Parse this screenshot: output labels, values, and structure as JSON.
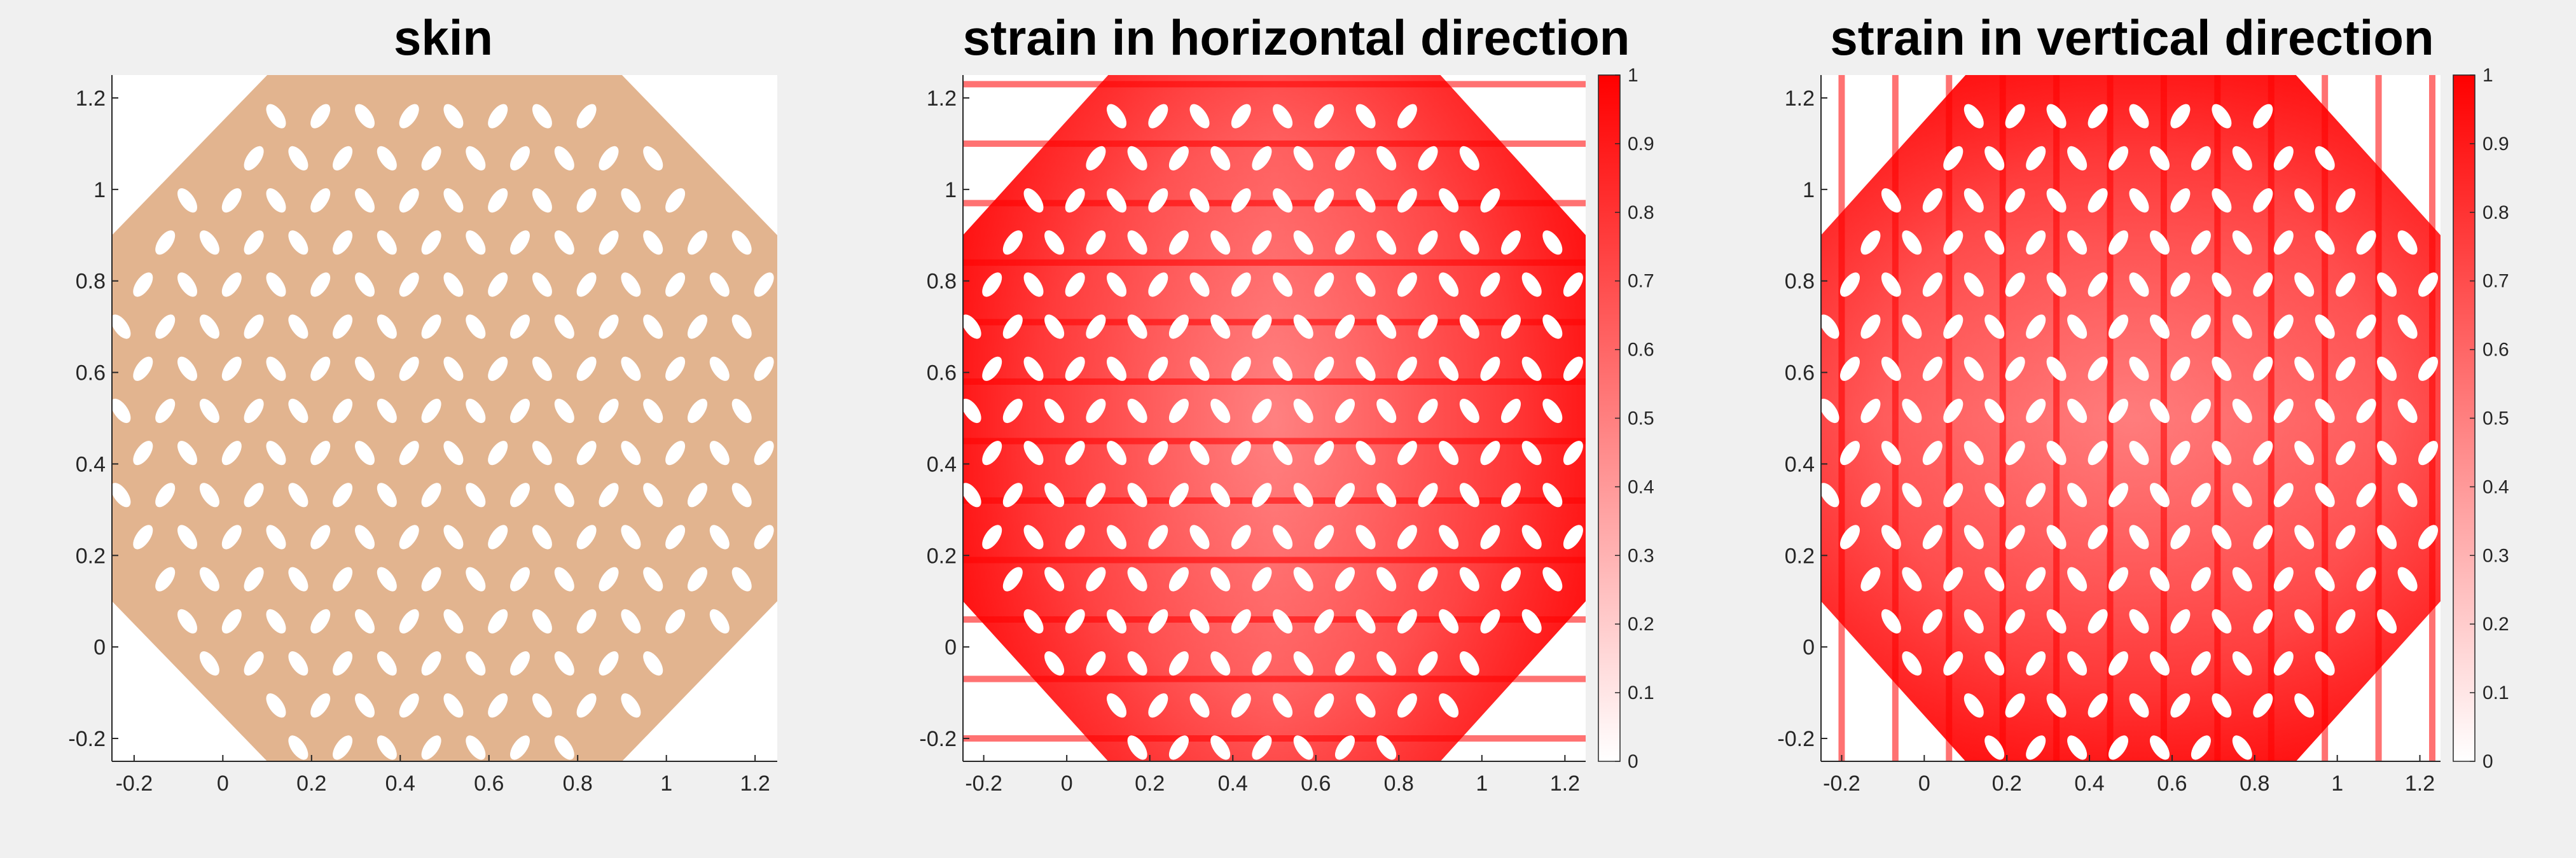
{
  "colors": {
    "background": "#f0f0f0",
    "axes_background": "#ffffff",
    "axis_line": "#262626",
    "skin": "#e2b48f",
    "hole": "#ffffff",
    "strain_high": "#ff0000",
    "strain_low": "#ffffff"
  },
  "chart_data": [
    {
      "type": "heatmap",
      "title": "skin",
      "xlim": [
        -0.25,
        1.25
      ],
      "ylim": [
        -0.25,
        1.25
      ],
      "xticks": [
        -0.2,
        0,
        0.2,
        0.4,
        0.6,
        0.8,
        1,
        1.2
      ],
      "yticks": [
        -0.2,
        0,
        0.2,
        0.4,
        0.6,
        0.8,
        1,
        1.2
      ],
      "xtick_labels": [
        "-0.2",
        "0",
        "0.2",
        "0.4",
        "0.6",
        "0.8",
        "1",
        "1.2"
      ],
      "ytick_labels": [
        "-0.2",
        "0",
        "0.2",
        "0.4",
        "0.6",
        "0.8",
        "1",
        "1.2"
      ],
      "colorbar": null,
      "fill": "skin",
      "pattern": "octagonal skin patch perforated with elliptical holes"
    },
    {
      "type": "heatmap",
      "title": "strain in horizontal direction",
      "xlim": [
        -0.25,
        1.25
      ],
      "ylim": [
        -0.25,
        1.25
      ],
      "xticks": [
        -0.2,
        0,
        0.2,
        0.4,
        0.6,
        0.8,
        1,
        1.2
      ],
      "yticks": [
        -0.2,
        0,
        0.2,
        0.4,
        0.6,
        0.8,
        1,
        1.2
      ],
      "xtick_labels": [
        "-0.2",
        "0",
        "0.2",
        "0.4",
        "0.6",
        "0.8",
        "1",
        "1.2"
      ],
      "ytick_labels": [
        "-0.2",
        "0",
        "0.2",
        "0.4",
        "0.6",
        "0.8",
        "1",
        "1.2"
      ],
      "colorbar": {
        "range": [
          0,
          1
        ],
        "ticks": [
          0,
          0.1,
          0.2,
          0.3,
          0.4,
          0.5,
          0.6,
          0.7,
          0.8,
          0.9,
          1
        ],
        "tick_labels": [
          "0",
          "0.1",
          "0.2",
          "0.3",
          "0.4",
          "0.5",
          "0.6",
          "0.7",
          "0.8",
          "0.9",
          "1"
        ],
        "colormap": "white-to-red"
      },
      "fill": "strain",
      "direction": "horizontal"
    },
    {
      "type": "heatmap",
      "title": "strain in vertical direction",
      "xlim": [
        -0.25,
        1.25
      ],
      "ylim": [
        -0.25,
        1.25
      ],
      "xticks": [
        -0.2,
        0,
        0.2,
        0.4,
        0.6,
        0.8,
        1,
        1.2
      ],
      "yticks": [
        -0.2,
        0,
        0.2,
        0.4,
        0.6,
        0.8,
        1,
        1.2
      ],
      "xtick_labels": [
        "-0.2",
        "0",
        "0.2",
        "0.4",
        "0.6",
        "0.8",
        "1",
        "1.2"
      ],
      "ytick_labels": [
        "-0.2",
        "0",
        "0.2",
        "0.4",
        "0.6",
        "0.8",
        "1",
        "1.2"
      ],
      "colorbar": {
        "range": [
          0,
          1
        ],
        "ticks": [
          0,
          0.1,
          0.2,
          0.3,
          0.4,
          0.5,
          0.6,
          0.7,
          0.8,
          0.9,
          1
        ],
        "tick_labels": [
          "0",
          "0.1",
          "0.2",
          "0.3",
          "0.4",
          "0.5",
          "0.6",
          "0.7",
          "0.8",
          "0.9",
          "1"
        ],
        "colormap": "white-to-red"
      },
      "fill": "strain",
      "direction": "vertical"
    }
  ]
}
